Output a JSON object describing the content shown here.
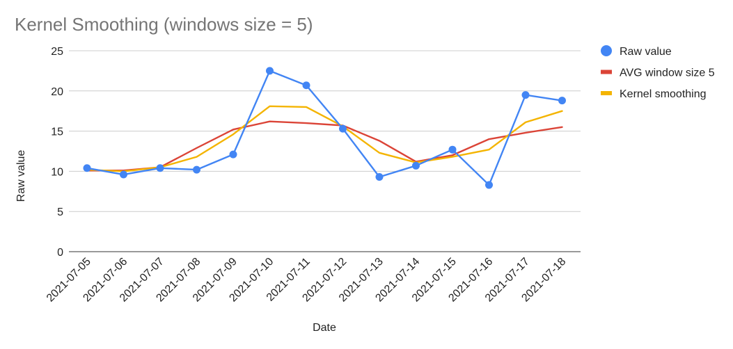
{
  "chart_data": {
    "type": "line",
    "title": "Kernel Smoothing (windows size = 5)",
    "xlabel": "Date",
    "ylabel": "Raw value",
    "ylim": [
      0,
      25
    ],
    "yticks": [
      0,
      5,
      10,
      15,
      20,
      25
    ],
    "grid": true,
    "legend_position": "right",
    "categories": [
      "2021-07-05",
      "2021-07-06",
      "2021-07-07",
      "2021-07-08",
      "2021-07-09",
      "2021-07-10",
      "2021-07-11",
      "2021-07-12",
      "2021-07-13",
      "2021-07-14",
      "2021-07-15",
      "2021-07-16",
      "2021-07-17",
      "2021-07-18"
    ],
    "series": [
      {
        "name": "Raw value",
        "color": "#4285f4",
        "markers": true,
        "values": [
          10.4,
          9.6,
          10.4,
          10.2,
          12.1,
          22.5,
          20.7,
          15.3,
          9.3,
          10.7,
          12.7,
          8.3,
          19.5,
          18.8
        ]
      },
      {
        "name": "AVG window size 5",
        "color": "#db4437",
        "markers": false,
        "values": [
          10.1,
          10.1,
          10.5,
          12.9,
          15.2,
          16.2,
          16.0,
          15.7,
          13.8,
          11.2,
          12.0,
          14.0,
          14.8,
          15.5
        ]
      },
      {
        "name": "Kernel smoothing",
        "color": "#f4b400",
        "markers": false,
        "values": [
          10.2,
          10.0,
          10.5,
          11.8,
          14.6,
          18.1,
          18.0,
          15.6,
          12.3,
          11.1,
          11.8,
          12.7,
          16.1,
          17.5
        ]
      }
    ]
  }
}
